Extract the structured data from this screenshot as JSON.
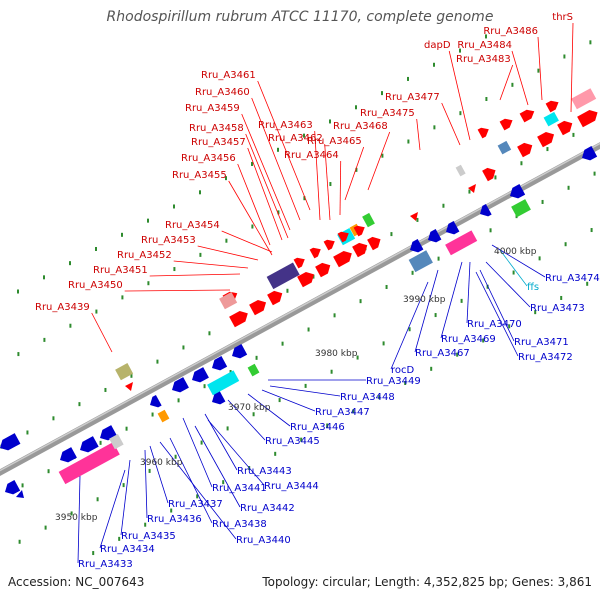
{
  "title": "Rhodospirillum rubrum ATCC 11170, complete genome",
  "footer": {
    "accession": "Accession: NC_007643",
    "summary": "Topology: circular; Length: 4,352,825 bp; Genes: 3,861"
  },
  "colors": {
    "top_strand": "#ff0000",
    "bottom_strand": "#0000cc",
    "top_label": "#cc0000",
    "bottom_label": "#0000cc",
    "rna_label": "#00aacc",
    "backbone": "#888888",
    "tick": "#2e8b2e",
    "rRNA_pink": "#ff3399",
    "tRNA_cyan": "#00e5ee",
    "green_feature": "#33cc33",
    "orange_feature": "#ff9900",
    "olive_feature": "#b7b36b",
    "steel_feature": "#5588bb",
    "navy_feature": "#443388"
  },
  "kbp_labels": [
    {
      "text": "3950 kbp"
    },
    {
      "text": "3960 kbp"
    },
    {
      "text": "3970 kbp"
    },
    {
      "text": "3980 kbp"
    },
    {
      "text": "3990 kbp"
    },
    {
      "text": "4000 kbp"
    }
  ],
  "top_genes": [
    "thrS",
    "Rru_A3486",
    "Rru_A3484",
    "Rru_A3483",
    "dapD",
    "Rru_A3477",
    "Rru_A3475",
    "Rru_A3468",
    "Rru_A3465",
    "Rru_A3464",
    "Rru_A3463",
    "Rru_A3462",
    "Rru_A3461",
    "Rru_A3460",
    "Rru_A3459",
    "Rru_A3458",
    "Rru_A3457",
    "Rru_A3456",
    "Rru_A3455",
    "Rru_A3454",
    "Rru_A3453",
    "Rru_A3452",
    "Rru_A3451",
    "Rru_A3450",
    "Rru_A3439"
  ],
  "bottom_genes": [
    "Rru_A3474",
    "ffs",
    "Rru_A3473",
    "Rru_A3471",
    "Rru_A3472",
    "Rru_A3470",
    "Rru_A3469",
    "Rru_A3467",
    "rocD",
    "Rru_A3449",
    "Rru_A3448",
    "Rru_A3447",
    "Rru_A3446",
    "Rru_A3445",
    "Rru_A3443",
    "Rru_A3444",
    "Rru_A3441",
    "Rru_A3442",
    "Rru_A3437",
    "Rru_A3438",
    "Rru_A3436",
    "Rru_A3440",
    "Rru_A3435",
    "Rru_A3434",
    "Rru_A3433"
  ]
}
